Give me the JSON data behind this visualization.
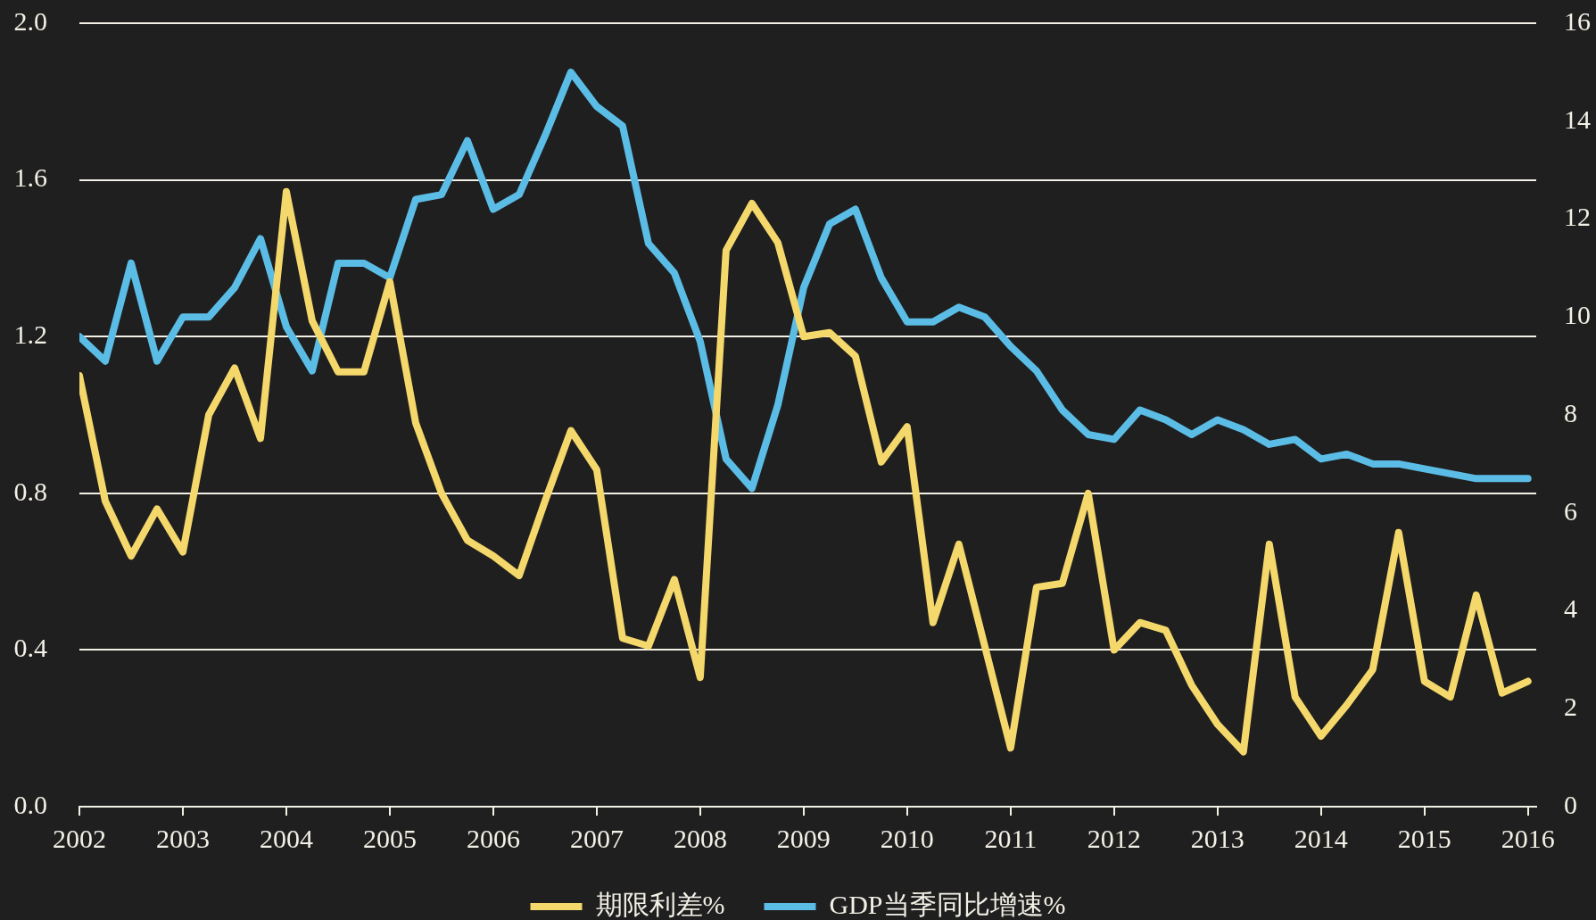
{
  "chart_data": {
    "type": "line",
    "x": [
      2002,
      2002.25,
      2002.5,
      2002.75,
      2003,
      2003.25,
      2003.5,
      2003.75,
      2004,
      2004.25,
      2004.5,
      2004.75,
      2005,
      2005.25,
      2005.5,
      2005.75,
      2006,
      2006.25,
      2006.5,
      2006.75,
      2007,
      2007.25,
      2007.5,
      2007.75,
      2008,
      2008.25,
      2008.5,
      2008.75,
      2009,
      2009.25,
      2009.5,
      2009.75,
      2010,
      2010.25,
      2010.5,
      2010.75,
      2011,
      2011.25,
      2011.5,
      2011.75,
      2012,
      2012.25,
      2012.5,
      2012.75,
      2013,
      2013.25,
      2013.5,
      2013.75,
      2014,
      2014.25,
      2014.5,
      2014.75,
      2015,
      2015.25,
      2015.5,
      2015.75,
      2016
    ],
    "series": [
      {
        "name": "期限利差%",
        "color": "#f5d86b",
        "values": [
          1.1,
          0.78,
          0.64,
          0.76,
          0.65,
          1.0,
          1.12,
          0.94,
          1.57,
          1.24,
          1.11,
          1.11,
          1.34,
          0.98,
          0.8,
          0.68,
          0.64,
          0.59,
          0.78,
          0.96,
          0.86,
          0.43,
          0.41,
          0.58,
          0.33,
          1.42,
          1.54,
          1.44,
          1.2,
          1.21,
          1.15,
          0.88,
          0.97,
          0.47,
          0.67,
          0.41,
          0.15,
          0.56,
          0.57,
          0.8,
          0.4,
          0.47,
          0.45,
          0.31,
          0.21,
          0.14,
          0.67,
          0.28,
          0.18,
          0.26,
          0.35,
          0.7,
          0.32,
          0.28,
          0.54,
          0.29,
          0.32
        ]
      },
      {
        "name": "GDP当季同比增速%",
        "color": "#5bbde6",
        "axis": "y2",
        "values": [
          9.6,
          9.1,
          11.1,
          9.1,
          10.0,
          10.0,
          10.6,
          11.6,
          9.8,
          8.9,
          11.1,
          11.1,
          10.8,
          12.4,
          12.5,
          13.6,
          12.2,
          12.5,
          13.7,
          15.0,
          14.3,
          13.9,
          11.5,
          10.9,
          9.5,
          7.1,
          6.5,
          8.2,
          10.6,
          11.9,
          12.2,
          10.8,
          9.9,
          9.9,
          10.2,
          10.0,
          9.4,
          8.9,
          8.1,
          7.6,
          7.5,
          8.1,
          7.9,
          7.6,
          7.9,
          7.7,
          7.4,
          7.5,
          7.1,
          7.2,
          7.0,
          7.0,
          6.9,
          6.8,
          6.7,
          6.7,
          6.7
        ]
      }
    ],
    "xlim": [
      2002,
      2016.08
    ],
    "xticks": [
      2002,
      2003,
      2004,
      2005,
      2006,
      2007,
      2008,
      2009,
      2010,
      2011,
      2012,
      2013,
      2014,
      2015,
      2016
    ],
    "ylim": [
      0,
      2
    ],
    "yticks": [
      {
        "value": 0,
        "label": "0.0"
      },
      0.4,
      0.8,
      1.2,
      1.6,
      {
        "value": 2,
        "label": "2.0"
      }
    ],
    "y2lim": [
      0,
      16
    ],
    "y2ticks": [
      0,
      2,
      4,
      6,
      8,
      10,
      12,
      14,
      16
    ],
    "grid": "y",
    "legend": "bottom",
    "marker": "none",
    "line_style": "solid"
  }
}
